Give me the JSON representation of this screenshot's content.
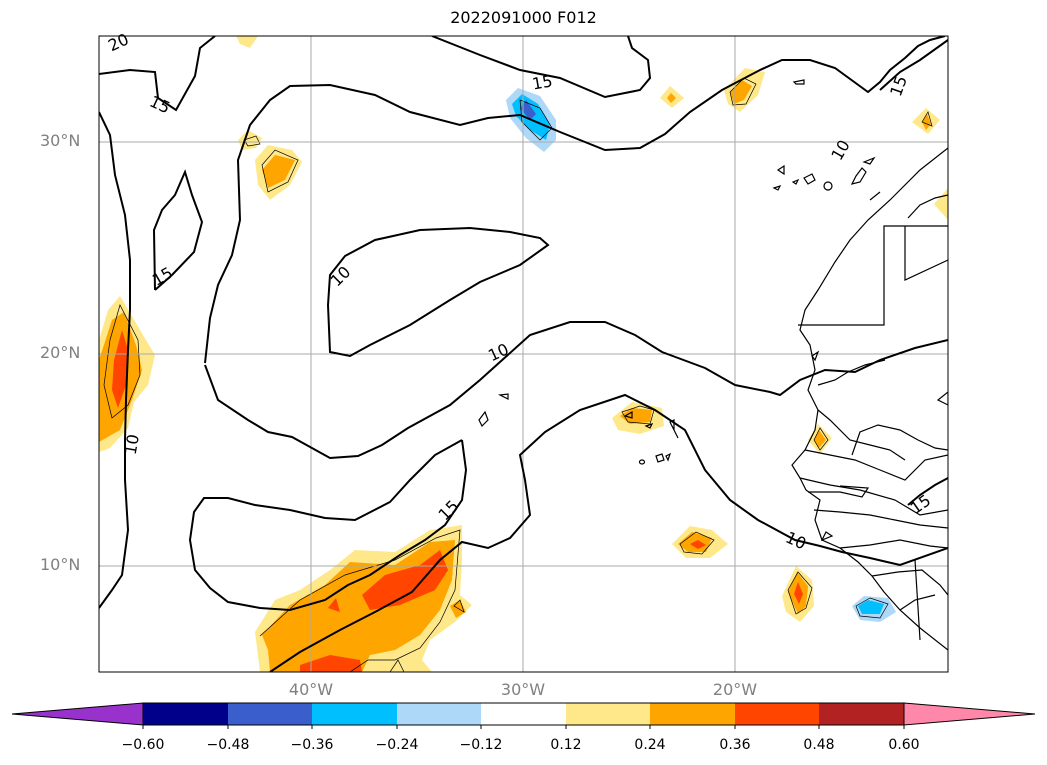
{
  "title": "2022091000 F012",
  "map": {
    "extent": {
      "lon_min": -50,
      "lon_max": -10,
      "lat_min": 5,
      "lat_max": 35
    },
    "lat_labels": [
      {
        "text": "30°N",
        "lat": 30
      },
      {
        "text": "20°N",
        "lat": 20
      },
      {
        "text": "10°N",
        "lat": 10
      }
    ],
    "lon_labels": [
      {
        "text": "40°W",
        "lon": -40
      },
      {
        "text": "30°W",
        "lon": -30
      },
      {
        "text": "20°W",
        "lon": -20
      }
    ],
    "contour_labels": [
      "20",
      "15",
      "15",
      "15",
      "15",
      "10",
      "10",
      "10",
      "15",
      "10",
      "10",
      "15",
      "15"
    ],
    "colors": {
      "grid": "#aaaaaa",
      "contour": "#000000",
      "coast": "#000000"
    }
  },
  "colorbar": {
    "ticks": [
      "−0.60",
      "−0.48",
      "−0.36",
      "−0.24",
      "−0.12",
      "0.12",
      "0.24",
      "0.36",
      "0.48",
      "0.60"
    ],
    "colors": [
      "#9932cc",
      "#00008b",
      "#3a5fcd",
      "#00bfff",
      "#add8f8",
      "#ffffff",
      "#ffe88a",
      "#ffa500",
      "#ff4500",
      "#b22222",
      "#ff88aa"
    ]
  }
}
